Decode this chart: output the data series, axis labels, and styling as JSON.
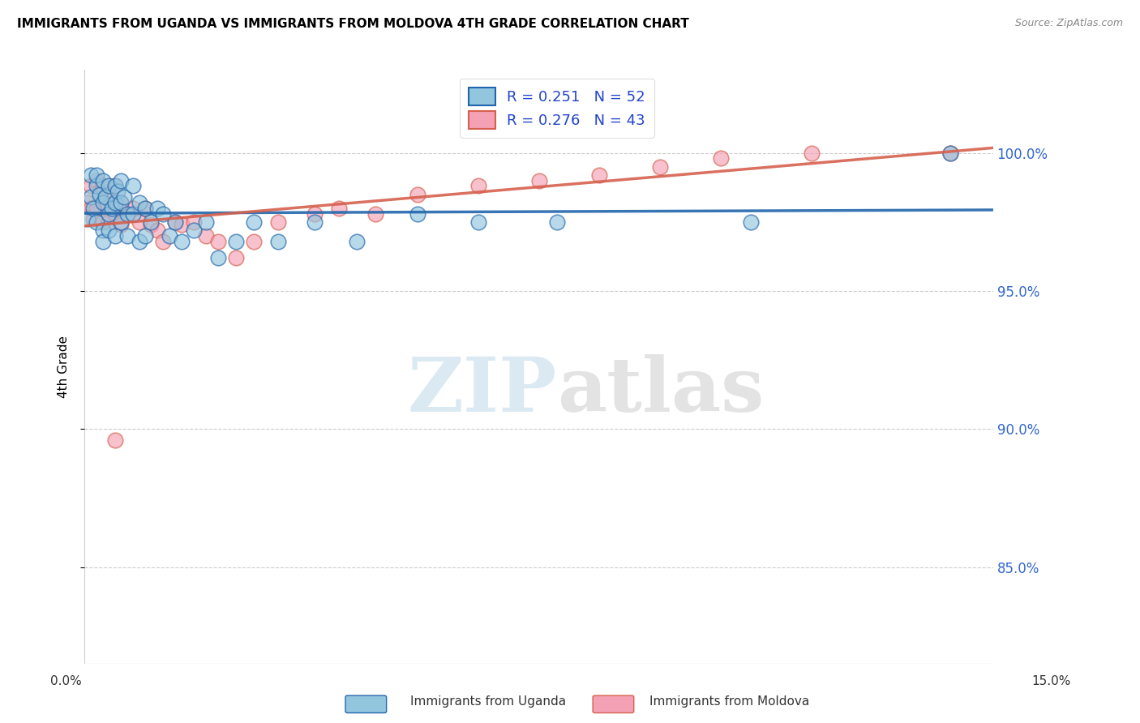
{
  "title": "IMMIGRANTS FROM UGANDA VS IMMIGRANTS FROM MOLDOVA 4TH GRADE CORRELATION CHART",
  "source": "Source: ZipAtlas.com",
  "ylabel": "4th Grade",
  "y_ticks": [
    0.85,
    0.9,
    0.95,
    1.0
  ],
  "y_tick_labels": [
    "85.0%",
    "90.0%",
    "95.0%",
    "100.0%"
  ],
  "xlim": [
    0.0,
    0.15
  ],
  "ylim": [
    0.815,
    1.03
  ],
  "R1": 0.251,
  "N1": 52,
  "R2": 0.276,
  "N2": 43,
  "color_uganda": "#92c5de",
  "color_moldova": "#f4a0b5",
  "trendline_color_uganda": "#2166ac",
  "trendline_color_moldova": "#d6604d",
  "watermark_zip": "ZIP",
  "watermark_atlas": "atlas",
  "legend_label1": "Immigrants from Uganda",
  "legend_label2": "Immigrants from Moldova",
  "uganda_x": [
    0.0005,
    0.001,
    0.001,
    0.0015,
    0.002,
    0.002,
    0.002,
    0.0025,
    0.003,
    0.003,
    0.003,
    0.003,
    0.0035,
    0.004,
    0.004,
    0.004,
    0.0045,
    0.005,
    0.005,
    0.005,
    0.0055,
    0.006,
    0.006,
    0.006,
    0.0065,
    0.007,
    0.007,
    0.008,
    0.008,
    0.009,
    0.009,
    0.01,
    0.01,
    0.011,
    0.012,
    0.013,
    0.014,
    0.015,
    0.016,
    0.018,
    0.02,
    0.022,
    0.025,
    0.028,
    0.032,
    0.038,
    0.045,
    0.055,
    0.065,
    0.078,
    0.11,
    0.143
  ],
  "uganda_y": [
    0.976,
    0.984,
    0.992,
    0.98,
    0.988,
    0.992,
    0.975,
    0.985,
    0.99,
    0.982,
    0.972,
    0.968,
    0.984,
    0.988,
    0.978,
    0.972,
    0.98,
    0.988,
    0.982,
    0.97,
    0.986,
    0.99,
    0.982,
    0.975,
    0.984,
    0.978,
    0.97,
    0.988,
    0.978,
    0.982,
    0.968,
    0.98,
    0.97,
    0.975,
    0.98,
    0.978,
    0.97,
    0.975,
    0.968,
    0.972,
    0.975,
    0.962,
    0.968,
    0.975,
    0.968,
    0.975,
    0.968,
    0.978,
    0.975,
    0.975,
    0.975,
    1.0
  ],
  "moldova_x": [
    0.0005,
    0.001,
    0.001,
    0.0015,
    0.002,
    0.002,
    0.0025,
    0.003,
    0.003,
    0.0035,
    0.004,
    0.004,
    0.005,
    0.005,
    0.006,
    0.006,
    0.007,
    0.008,
    0.009,
    0.01,
    0.011,
    0.012,
    0.013,
    0.015,
    0.016,
    0.018,
    0.02,
    0.022,
    0.025,
    0.028,
    0.032,
    0.038,
    0.042,
    0.048,
    0.055,
    0.065,
    0.075,
    0.085,
    0.095,
    0.105,
    0.12,
    0.143,
    0.005
  ],
  "moldova_y": [
    0.982,
    0.988,
    0.98,
    0.976,
    0.99,
    0.98,
    0.986,
    0.988,
    0.975,
    0.982,
    0.985,
    0.975,
    0.988,
    0.978,
    0.982,
    0.974,
    0.978,
    0.98,
    0.975,
    0.98,
    0.974,
    0.972,
    0.968,
    0.975,
    0.974,
    0.975,
    0.97,
    0.968,
    0.962,
    0.968,
    0.975,
    0.978,
    0.98,
    0.978,
    0.985,
    0.988,
    0.99,
    0.992,
    0.995,
    0.998,
    1.0,
    1.0,
    0.896
  ]
}
